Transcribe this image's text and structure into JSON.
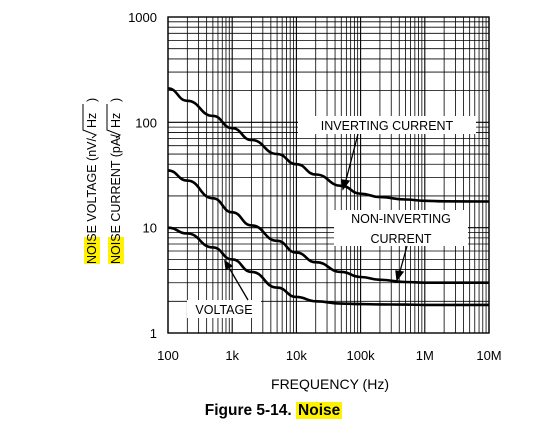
{
  "chart_data": {
    "type": "line",
    "xscale": "log",
    "yscale": "log",
    "xlim": [
      100,
      10000000
    ],
    "ylim": [
      1,
      1000
    ],
    "x_tick_labels": [
      "100",
      "1k",
      "10k",
      "100k",
      "1M",
      "10M"
    ],
    "y_tick_labels": [
      "1",
      "10",
      "100",
      "1000"
    ],
    "xlabel": "FREQUENCY (Hz)",
    "ylabel_lines": [
      "NOISE VOLTAGE (nV/",
      "NOISE CURRENT (pA/"
    ],
    "ylabel_highlight": "NOI",
    "ylabel_rest": "SE VOLTAGE (nV/",
    "ylabel_rest_current": "SE CURRENT (pA/",
    "sqrt_hz": "Hz",
    "grid": true,
    "series": [
      {
        "name": "INVERTING CURRENT",
        "x": [
          100,
          200,
          500,
          1000,
          2000,
          5000,
          10000,
          20000,
          50000,
          100000,
          200000,
          500000,
          1000000,
          2000000,
          10000000
        ],
        "y": [
          210,
          160,
          115,
          88,
          68,
          50,
          40,
          32,
          25,
          21,
          19.5,
          18.5,
          18,
          17.8,
          17.7
        ]
      },
      {
        "name": "NON-INVERTING CURRENT",
        "x": [
          100,
          200,
          500,
          1000,
          2000,
          5000,
          10000,
          20000,
          50000,
          100000,
          200000,
          500000,
          1000000,
          2000000,
          10000000
        ],
        "y": [
          35,
          28,
          19,
          14,
          10.5,
          7.5,
          5.8,
          4.7,
          3.8,
          3.4,
          3.2,
          3.05,
          3.0,
          3.0,
          3.0
        ]
      },
      {
        "name": "VOLTAGE",
        "x": [
          100,
          200,
          500,
          1000,
          2000,
          5000,
          10000,
          20000,
          50000,
          100000,
          200000,
          500000,
          1000000,
          2000000,
          10000000
        ],
        "y": [
          10,
          8.8,
          6.5,
          5.0,
          3.8,
          2.7,
          2.2,
          2.0,
          1.9,
          1.88,
          1.87,
          1.86,
          1.85,
          1.85,
          1.85
        ]
      }
    ],
    "annotations": {
      "inverting": "INVERTING CURRENT",
      "non_inverting_line1": "NON-INVERTING",
      "non_inverting_line2": "CURRENT",
      "voltage": "VOLTAGE"
    }
  },
  "caption": {
    "prefix": "Figure 5-14. ",
    "highlight": "Noise"
  }
}
